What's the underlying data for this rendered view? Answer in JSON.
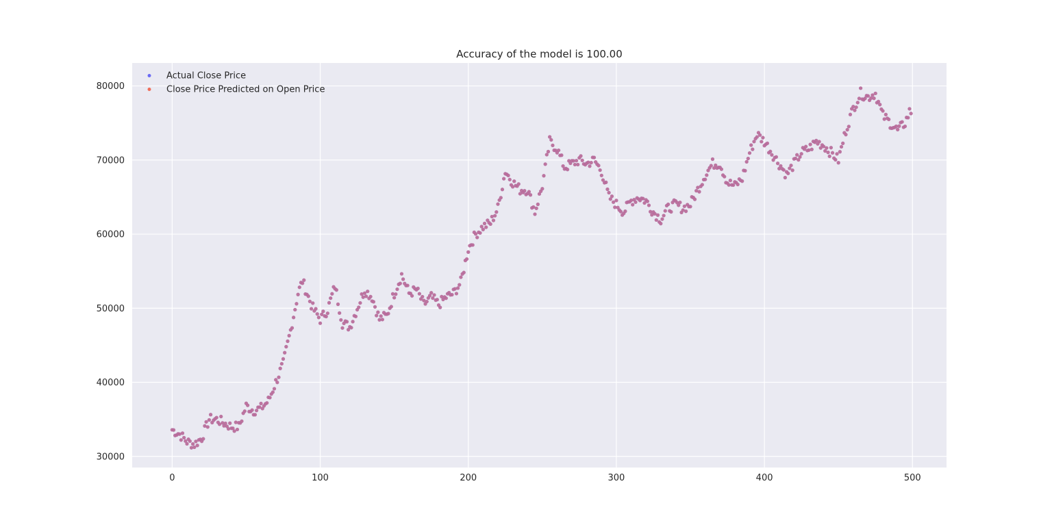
{
  "chart_data": {
    "type": "scatter",
    "title": "Accuracy of the model is 100.00",
    "xlabel": "",
    "ylabel": "",
    "xlim": [
      -27,
      523
    ],
    "ylim": [
      28500,
      83100
    ],
    "xticks": [
      0,
      100,
      200,
      300,
      400,
      500
    ],
    "yticks": [
      30000,
      40000,
      50000,
      60000,
      70000,
      80000
    ],
    "grid": true,
    "legend_position": "top-left",
    "colors": {
      "background": "#eaeaf2",
      "grid": "#ffffff",
      "actual": "#6b6bf5",
      "predicted": "#f06e5a",
      "overlap": "#b5256a"
    },
    "anchors": {
      "x": [
        0,
        5,
        10,
        15,
        20,
        25,
        30,
        35,
        40,
        45,
        50,
        55,
        60,
        65,
        70,
        75,
        80,
        85,
        88,
        92,
        95,
        100,
        105,
        110,
        115,
        120,
        125,
        130,
        135,
        140,
        145,
        150,
        155,
        160,
        165,
        170,
        175,
        180,
        185,
        190,
        195,
        200,
        205,
        210,
        215,
        220,
        225,
        230,
        235,
        240,
        245,
        250,
        255,
        260,
        265,
        270,
        275,
        280,
        285,
        290,
        295,
        300,
        305,
        310,
        315,
        320,
        325,
        330,
        335,
        340,
        345,
        350,
        355,
        360,
        365,
        370,
        375,
        380,
        385,
        390,
        395,
        400,
        405,
        410,
        415,
        420,
        425,
        430,
        435,
        440,
        445,
        450,
        455,
        460,
        465,
        470,
        475,
        480,
        485,
        490,
        495,
        498
      ],
      "y": [
        33600,
        33000,
        32000,
        31600,
        32500,
        35000,
        35000,
        34500,
        34000,
        34000,
        36800,
        36200,
        36500,
        37500,
        40000,
        42500,
        47000,
        52000,
        53700,
        51500,
        50000,
        48500,
        49800,
        53000,
        48000,
        47500,
        50000,
        52500,
        51500,
        48500,
        49000,
        52000,
        54500,
        52000,
        52500,
        50500,
        51500,
        50500,
        51500,
        52000,
        53500,
        58000,
        60000,
        61000,
        61500,
        63500,
        68500,
        67000,
        66000,
        66000,
        63000,
        66500,
        72500,
        71500,
        69000,
        69500,
        70000,
        69500,
        70000,
        68500,
        65000,
        64000,
        63000,
        64500,
        65000,
        64500,
        63000,
        62000,
        63500,
        64000,
        63500,
        64000,
        66000,
        68000,
        69500,
        69500,
        67000,
        66500,
        67500,
        71000,
        73500,
        72500,
        71000,
        69500,
        68000,
        69500,
        71000,
        71500,
        72500,
        72000,
        71000,
        70000,
        74000,
        77000,
        79000,
        78500,
        79000,
        76000,
        75000,
        74000,
        75000,
        76500
      ]
    },
    "n_points": 500,
    "series": [
      {
        "name": "Actual Close Price"
      },
      {
        "name": "Close Price Predicted on Open Price"
      }
    ]
  }
}
